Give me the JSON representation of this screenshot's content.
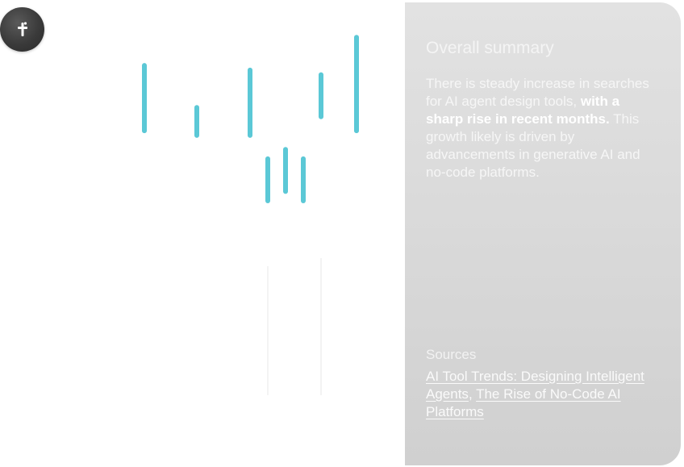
{
  "logo": {
    "icon": "cross-logo-icon",
    "color": "#3a3a3a"
  },
  "chart_data": {
    "type": "candlestick",
    "title": "",
    "xlabel": "",
    "ylabel": "",
    "ylim": [
      0,
      100
    ],
    "accent_color": "#5bc8d6",
    "candles": [
      {
        "index": 0,
        "high": 86,
        "low": 72
      },
      {
        "index": 1,
        "high": 77,
        "low": 71
      },
      {
        "index": 2,
        "high": 85,
        "low": 71
      },
      {
        "index": 3,
        "high": 66,
        "low": 57
      },
      {
        "index": 4,
        "high": 68,
        "low": 59
      },
      {
        "index": 5,
        "high": 66,
        "low": 57
      },
      {
        "index": 6,
        "high": 84,
        "low": 75
      },
      {
        "index": 7,
        "high": 92,
        "low": 72
      }
    ]
  },
  "summary": {
    "title": "Overall summary",
    "body_part1": "There is steady increase in searches for AI agent design tools, ",
    "body_emphasis": "with a sharp rise in recent months.",
    "body_part2": " This growth likely is driven by advancements in generative AI and no-code platforms.",
    "panel_color": "#dadada"
  },
  "sources": {
    "label": "Sources",
    "separator": ", ",
    "links": [
      {
        "text": "AI Tool Trends: Designing Intelligent Agents"
      },
      {
        "text": "The Rise of No-Code AI Platforms"
      }
    ]
  }
}
